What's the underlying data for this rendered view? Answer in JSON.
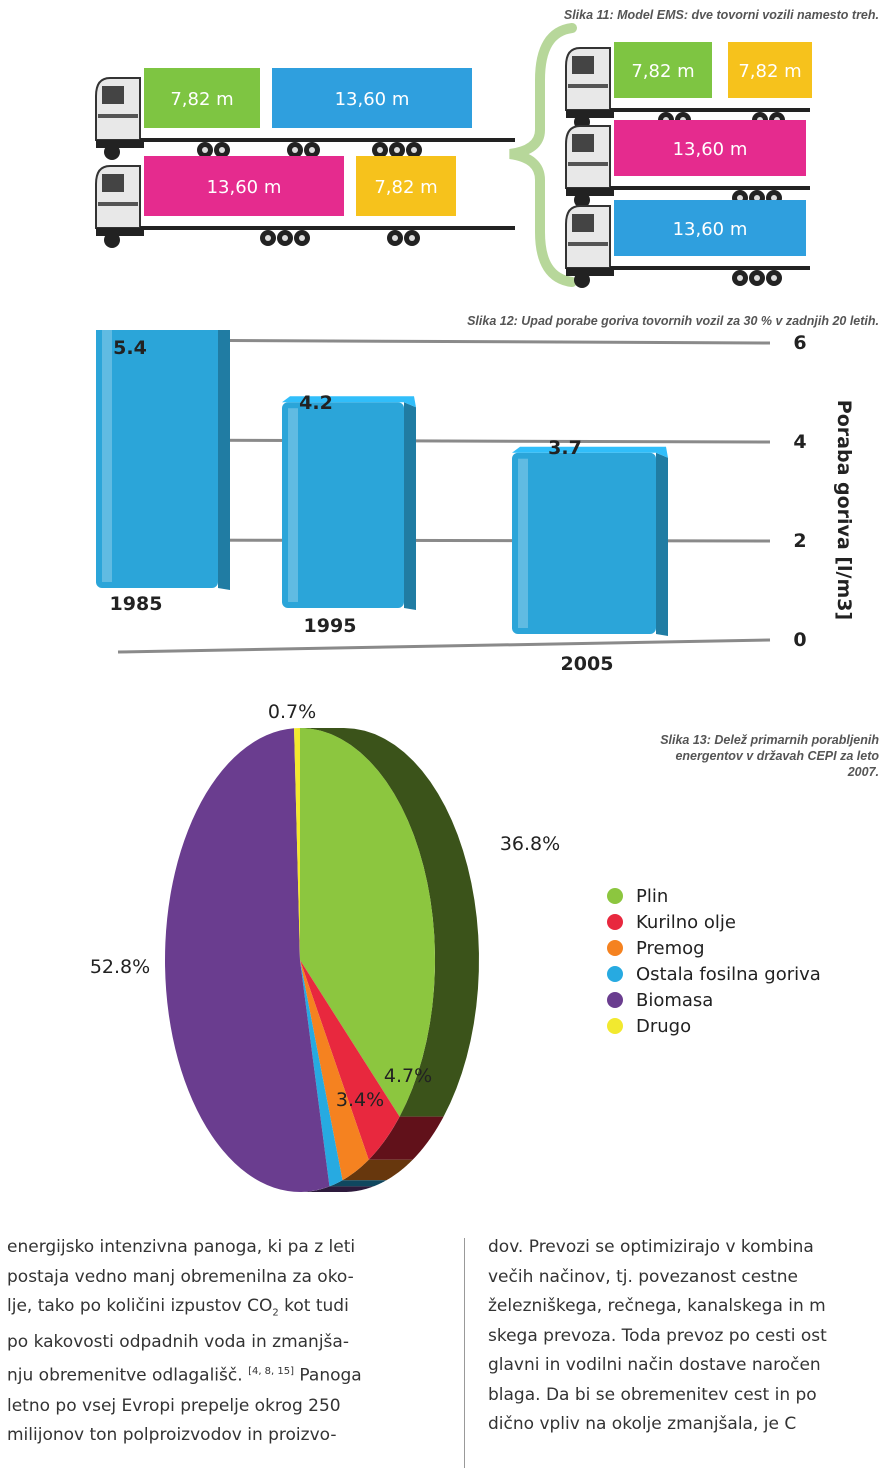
{
  "figure11": {
    "caption": "Slika 11: Model EMS: dve tovorni vozili namesto treh.",
    "left_trucks": [
      {
        "trailers": [
          {
            "label": "7,82 m",
            "color": "#7ec542"
          },
          {
            "label": "13,60 m",
            "color": "#2f9fde"
          }
        ]
      },
      {
        "trailers": [
          {
            "label": "13,60 m",
            "color": "#e52b8e"
          },
          {
            "label": "7,82 m",
            "color": "#f6c21c"
          }
        ]
      }
    ],
    "right_trucks": [
      {
        "trailers": [
          {
            "label": "7,82 m",
            "color": "#7ec542"
          },
          {
            "label": "7,82 m",
            "color": "#f6c21c"
          }
        ]
      },
      {
        "trailers": [
          {
            "label": "13,60 m",
            "color": "#e52b8e"
          }
        ]
      },
      {
        "trailers": [
          {
            "label": "13,60 m",
            "color": "#2f9fde"
          }
        ]
      }
    ]
  },
  "figure12": {
    "caption": "Slika 12: Upad porabe goriva tovornih vozil za 30 % v zadnjih 20 letih.",
    "chart_data": {
      "type": "bar",
      "categories": [
        "1985",
        "1995",
        "2005"
      ],
      "values": [
        5.4,
        4.2,
        3.7
      ],
      "value_labels": [
        "5.4",
        "4.2",
        "3.7"
      ],
      "ylabel": "Poraba goriva [l/m3]",
      "ylim": [
        0,
        6
      ],
      "yticks": [
        "0",
        "2",
        "4",
        "6"
      ],
      "grid": true,
      "bar_color": "#2ba5d9"
    }
  },
  "figure13": {
    "caption": "Slika 13: Delež primarnih porabljenih energentov v državah CEPI za leto 2007.",
    "chart_data": {
      "type": "pie",
      "categories": [
        "Plin",
        "Kurilno olje",
        "Premog",
        "Ostala fosilna goriva",
        "Biomasa",
        "Drugo"
      ],
      "values": [
        36.8,
        4.7,
        3.4,
        1.6,
        52.8,
        0.7
      ],
      "value_labels": [
        "36.8%",
        "4.7%",
        "3.4%",
        "",
        "52.8%",
        "0.7%"
      ],
      "colors": [
        "#8cc63f",
        "#e8283e",
        "#f58220",
        "#27aae1",
        "#6a3d8f",
        "#f2e92f"
      ],
      "legend": "right"
    }
  },
  "body_text": {
    "left_lines": [
      "energijsko intenzivna panoga, ki pa z leti",
      "postaja vedno manj obremenilna za oko-",
      "lje, tako po količini izpustov CO",
      "po kakovosti odpadnih voda in zmanjša-",
      "nju obremenitve odlagališč.",
      "letno po vsej Evropi prepelje okrog 250",
      "milijonov ton polproizvodov in proizvo-"
    ],
    "co2_subscript": "2",
    "co2_tail": " kot tudi",
    "refs": "[4, 8, 15]",
    "after_refs": " Panoga",
    "right_lines": [
      "dov. Prevozi se optimizirajo v kombina",
      "večih načinov, tj. povezanost cestne",
      "železniškega, rečnega, kanalskega in m",
      "skega prevoza. Toda prevoz po cesti ost",
      "glavni in vodilni način dostave naročen",
      "blaga. Da bi se obremenitev cest in po",
      "dično vpliv na okolje zmanjšala, je C"
    ]
  }
}
